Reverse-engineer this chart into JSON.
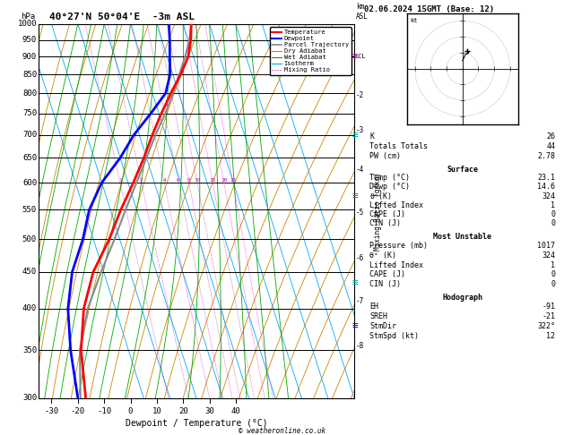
{
  "title_left": "40°27'N 50°04'E  -3m ASL",
  "title_right": "02.06.2024 15GMT (Base: 12)",
  "xlabel": "Dewpoint / Temperature (°C)",
  "ylabel_left": "hPa",
  "pressure_levels": [
    300,
    350,
    400,
    450,
    500,
    550,
    600,
    650,
    700,
    750,
    800,
    850,
    900,
    950,
    1000
  ],
  "pressure_min": 300,
  "pressure_max": 1000,
  "temp_min": -35,
  "temp_max": 40,
  "temp_ticks": [
    -30,
    -20,
    -10,
    0,
    10,
    20,
    30,
    40
  ],
  "skew_factor": 45.0,
  "isotherm_temps": [
    -40,
    -30,
    -20,
    -10,
    0,
    10,
    20,
    30,
    40,
    50
  ],
  "isotherm_color": "#00aaff",
  "dry_adiabat_color": "#cc8800",
  "wet_adiabat_color": "#00aa00",
  "mixing_ratio_color": "#cc00cc",
  "temperature_profile_temp": [
    23.1,
    21.0,
    18.0,
    13.0,
    7.0,
    1.0,
    -5.0,
    -11.0,
    -18.0,
    -26.0,
    -34.0,
    -44.0,
    -52.0,
    -58.0,
    -62.0
  ],
  "temperature_profile_pres": [
    1000,
    950,
    900,
    850,
    800,
    750,
    700,
    650,
    600,
    550,
    500,
    450,
    400,
    350,
    300
  ],
  "dewpoint_profile_temp": [
    14.6,
    13.0,
    11.0,
    9.0,
    5.0,
    -3.0,
    -12.0,
    -20.0,
    -30.0,
    -38.0,
    -44.0,
    -52.0,
    -58.0,
    -62.0,
    -65.0
  ],
  "dewpoint_profile_pres": [
    1000,
    950,
    900,
    850,
    800,
    750,
    700,
    650,
    600,
    550,
    500,
    450,
    400,
    350,
    300
  ],
  "parcel_temp": [
    23.1,
    20.5,
    16.8,
    12.5,
    7.8,
    2.5,
    -3.8,
    -10.0,
    -16.8,
    -24.2,
    -32.0,
    -41.0,
    -50.5,
    -58.5,
    -64.0
  ],
  "parcel_pres": [
    1000,
    950,
    900,
    850,
    800,
    750,
    700,
    650,
    600,
    550,
    500,
    450,
    400,
    350,
    300
  ],
  "lcl_pressure": 900,
  "mixing_ratio_values": [
    1,
    2,
    4,
    6,
    8,
    10,
    15,
    20,
    25
  ],
  "km_asl": {
    "2": 795,
    "3": 710,
    "4": 625,
    "5": 545,
    "6": 470,
    "7": 410,
    "8": 355
  },
  "stats": {
    "K": 26,
    "Totals_Totals": 44,
    "PW_cm": 2.78,
    "Surface": {
      "Temp_C": 23.1,
      "Dewp_C": 14.6,
      "theta_e_K": 324,
      "Lifted_Index": 1,
      "CAPE_J": 0,
      "CIN_J": 0
    },
    "Most_Unstable": {
      "Pressure_mb": 1017,
      "theta_e_K": 324,
      "Lifted_Index": 1,
      "CAPE_J": 0,
      "CIN_J": 0
    },
    "Hodograph": {
      "EH": -91,
      "SREH": -21,
      "StmDir_deg": 322,
      "StmSpd_kt": 12
    }
  },
  "copyright": "© weatheronline.co.uk",
  "background_color": "#ffffff",
  "temp_color": "#ff0000",
  "dewpoint_color": "#0000ff",
  "parcel_color": "#888888"
}
